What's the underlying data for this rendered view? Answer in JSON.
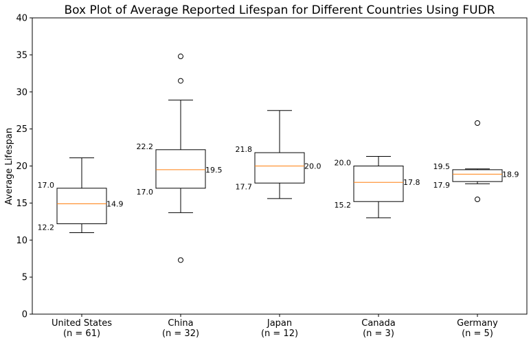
{
  "chart_data": {
    "type": "boxplot",
    "title": "Box Plot of Average Reported Lifespan for Different Countries Using FUDR",
    "xlabel": "",
    "ylabel": "Average Lifespan",
    "ylim": [
      0,
      40
    ],
    "yticks": [
      0,
      5,
      10,
      15,
      20,
      25,
      30,
      35,
      40
    ],
    "grid": false,
    "colors": {
      "box": "#000000",
      "median": "#ff7f0e",
      "whisker": "#000000",
      "outlier": "#000000"
    },
    "series": [
      {
        "name": "United States",
        "n_label": "(n = 61)",
        "q1": 12.2,
        "median": 14.9,
        "q3": 17.0,
        "whisker_low": 11.0,
        "whisker_high": 21.1,
        "outliers": [],
        "q1_label": "12.2",
        "median_label": "14.9",
        "q3_label": "17.0"
      },
      {
        "name": "China",
        "n_label": "(n = 32)",
        "q1": 17.0,
        "median": 19.5,
        "q3": 22.2,
        "whisker_low": 13.7,
        "whisker_high": 28.9,
        "outliers": [
          7.3,
          31.5,
          34.8
        ],
        "q1_label": "17.0",
        "median_label": "19.5",
        "q3_label": "22.2"
      },
      {
        "name": "Japan",
        "n_label": "(n = 12)",
        "q1": 17.7,
        "median": 20.0,
        "q3": 21.8,
        "whisker_low": 15.6,
        "whisker_high": 27.5,
        "outliers": [],
        "q1_label": "17.7",
        "median_label": "20.0",
        "q3_label": "21.8"
      },
      {
        "name": "Canada",
        "n_label": "(n = 3)",
        "q1": 15.2,
        "median": 17.8,
        "q3": 20.0,
        "whisker_low": 13.0,
        "whisker_high": 21.3,
        "outliers": [],
        "q1_label": "15.2",
        "median_label": "17.8",
        "q3_label": "20.0"
      },
      {
        "name": "Germany",
        "n_label": "(n = 5)",
        "q1": 17.9,
        "median": 18.9,
        "q3": 19.5,
        "whisker_low": 17.6,
        "whisker_high": 19.6,
        "outliers": [
          15.5,
          25.8
        ],
        "q1_label": "17.9",
        "median_label": "18.9",
        "q3_label": "19.5"
      }
    ]
  }
}
